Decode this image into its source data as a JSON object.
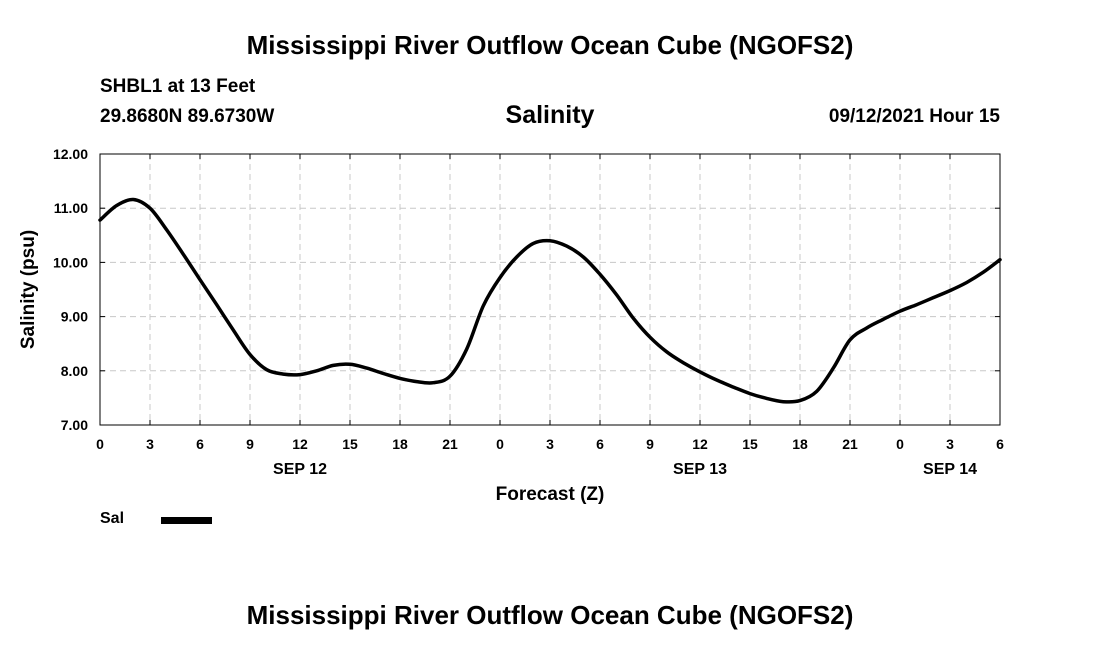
{
  "header": {
    "main_title": "Mississippi River Outflow Ocean Cube (NGOFS2)",
    "station": "SHBL1 at 13 Feet",
    "coords": "29.8680N  89.6730W",
    "variable_title": "Salinity",
    "datetime": "09/12/2021 Hour 15"
  },
  "footer": {
    "title": "Mississippi River Outflow Ocean Cube (NGOFS2)"
  },
  "legend": {
    "label": "Sal",
    "color": "#000000"
  },
  "chart_data": {
    "type": "line",
    "title": "Salinity",
    "xlabel": "Forecast (Z)",
    "ylabel": "Salinity (psu)",
    "xlim": [
      0,
      54
    ],
    "ylim": [
      7.0,
      12.0
    ],
    "grid": true,
    "x_ticks": [
      0,
      3,
      6,
      9,
      12,
      15,
      18,
      21,
      24,
      27,
      30,
      33,
      36,
      39,
      42,
      45,
      48,
      51,
      54
    ],
    "x_tick_labels": [
      "0",
      "3",
      "6",
      "9",
      "12",
      "15",
      "18",
      "21",
      "0",
      "3",
      "6",
      "9",
      "12",
      "15",
      "18",
      "21",
      "0",
      "3",
      "6"
    ],
    "y_ticks": [
      7,
      8,
      9,
      10,
      11,
      12
    ],
    "y_tick_labels": [
      "7.00",
      "8.00",
      "9.00",
      "10.00",
      "11.00",
      "12.00"
    ],
    "date_labels": [
      {
        "x": 12,
        "label": "SEP 12"
      },
      {
        "x": 36,
        "label": "SEP 13"
      },
      {
        "x": 51,
        "label": "SEP 14"
      }
    ],
    "series": [
      {
        "name": "Sal",
        "x": [
          0,
          1,
          2,
          3,
          4,
          5,
          6,
          7,
          8,
          9,
          10,
          11,
          12,
          13,
          14,
          15,
          16,
          17,
          18,
          19,
          20,
          21,
          22,
          23,
          24,
          25,
          26,
          27,
          28,
          29,
          30,
          31,
          32,
          33,
          34,
          35,
          36,
          37,
          38,
          39,
          40,
          41,
          42,
          43,
          44,
          45,
          46,
          47,
          48,
          49,
          50,
          51,
          52,
          53,
          54
        ],
        "values": [
          10.78,
          11.05,
          11.16,
          11.0,
          10.6,
          10.15,
          9.68,
          9.22,
          8.75,
          8.3,
          8.02,
          7.94,
          7.93,
          8.0,
          8.1,
          8.12,
          8.05,
          7.95,
          7.86,
          7.8,
          7.78,
          7.9,
          8.4,
          9.2,
          9.72,
          10.1,
          10.35,
          10.4,
          10.3,
          10.1,
          9.78,
          9.4,
          8.97,
          8.62,
          8.35,
          8.15,
          7.98,
          7.83,
          7.7,
          7.58,
          7.49,
          7.43,
          7.45,
          7.62,
          8.05,
          8.57,
          8.79,
          8.95,
          9.1,
          9.22,
          9.35,
          9.48,
          9.63,
          9.82,
          10.05
        ]
      }
    ]
  }
}
